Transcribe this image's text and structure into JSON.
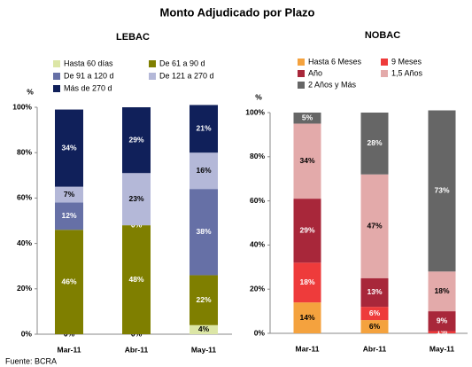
{
  "title": "Monto Adjudicado por Plazo",
  "source": "Fuente: BCRA",
  "axis_unit": "%",
  "chart_data": [
    {
      "type": "bar",
      "stacked": true,
      "title": "LEBAC",
      "categories": [
        "Mar-11",
        "Abr-11",
        "May-11"
      ],
      "ylim": [
        0,
        100
      ],
      "yticks": [
        {
          "value": 0,
          "label": "0%"
        },
        {
          "value": 20,
          "label": "20%"
        },
        {
          "value": 40,
          "label": "40%"
        },
        {
          "value": 60,
          "label": "60%"
        },
        {
          "value": 80,
          "label": "80%"
        },
        {
          "value": 100,
          "label": "100%"
        }
      ],
      "series": [
        {
          "name": "Hasta 60 días",
          "color": "#dce6a6",
          "values": [
            0,
            0,
            4
          ],
          "value_labels": [
            "0%",
            "0%",
            "4%"
          ]
        },
        {
          "name": "De 61 a 90 d",
          "color": "#7f7f00",
          "values": [
            46,
            48,
            22
          ],
          "value_labels": [
            "46%",
            "48%",
            "22%"
          ]
        },
        {
          "name": "De 91 a 120 d",
          "color": "#6670a6",
          "values": [
            12,
            0,
            38
          ],
          "value_labels": [
            "12%",
            "0%",
            "38%"
          ]
        },
        {
          "name": "De 121 a 270 d",
          "color": "#b4b8d8",
          "values": [
            7,
            23,
            16
          ],
          "value_labels": [
            "7%",
            "23%",
            "16%"
          ]
        },
        {
          "name": "Más de 270 d",
          "color": "#10205a",
          "values": [
            34,
            29,
            21
          ],
          "value_labels": [
            "34%",
            "29%",
            "21%"
          ]
        }
      ]
    },
    {
      "type": "bar",
      "stacked": true,
      "title": "NOBAC",
      "categories": [
        "Mar-11",
        "Abr-11",
        "May-11"
      ],
      "ylim": [
        0,
        100
      ],
      "yticks": [
        {
          "value": 0,
          "label": "0%"
        },
        {
          "value": 20,
          "label": "20%"
        },
        {
          "value": 40,
          "label": "40%"
        },
        {
          "value": 60,
          "label": "60%"
        },
        {
          "value": 80,
          "label": "80%"
        },
        {
          "value": 100,
          "label": "100%"
        }
      ],
      "series": [
        {
          "name": "Hasta 6 Meses",
          "color": "#f4a23e",
          "values": [
            14,
            6,
            0
          ],
          "value_labels": [
            "14%",
            "6%",
            null
          ]
        },
        {
          "name": "9 Meses",
          "color": "#ee3b3b",
          "values": [
            18,
            6,
            1
          ],
          "value_labels": [
            "18%",
            "6%",
            "1%"
          ]
        },
        {
          "name": "Año",
          "color": "#a8273a",
          "values": [
            29,
            13,
            9
          ],
          "value_labels": [
            "29%",
            "13%",
            "9%"
          ]
        },
        {
          "name": "1,5 Años",
          "color": "#e3aaaa",
          "values": [
            34,
            47,
            18
          ],
          "value_labels": [
            "34%",
            "47%",
            "18%"
          ]
        },
        {
          "name": "2 Años y Más",
          "color": "#666666",
          "values": [
            5,
            28,
            73
          ],
          "value_labels": [
            "5%",
            "28%",
            "73%"
          ]
        }
      ]
    }
  ]
}
